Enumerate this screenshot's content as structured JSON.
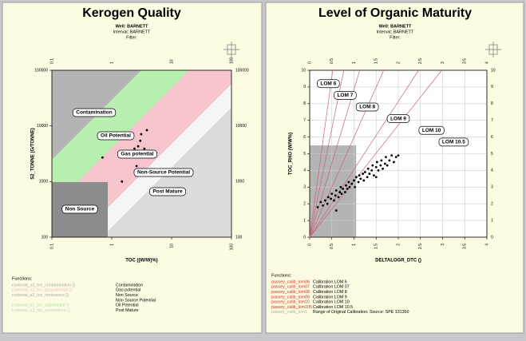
{
  "chart_data": [
    {
      "type": "scatter",
      "title": "Kerogen Quality",
      "subtitle": [
        "Well: BARNETT",
        "Interval: BARNETT",
        "Filter:"
      ],
      "xlabel": "TOC ((W/W)%)",
      "ylabel": "S2_TONNE (G/TONNE)",
      "log_x": true,
      "log_y": true,
      "xlim": [
        0.1,
        100
      ],
      "ylim": [
        100,
        100000
      ],
      "xticks": [
        0.1,
        1,
        10,
        100
      ],
      "yticks": [
        100,
        1000,
        10000,
        100000
      ],
      "x": [
        0.7,
        3.87,
        3.1,
        3.0,
        2.76,
        2.4,
        3.5,
        1.48,
        2.6
      ],
      "values": [
        2700,
        8400,
        7100,
        5400,
        4300,
        3900,
        3900,
        1000,
        1900
      ],
      "color": "#000000",
      "zones": [
        {
          "label": "Contamination",
          "color": "#b4b4b4"
        },
        {
          "label": "Oil Potential",
          "color": "#b8f0b0"
        },
        {
          "label": "Gas potential",
          "color": "#f6c4cc"
        },
        {
          "label": "Non-Source Potential",
          "color": "#f6f6f6"
        },
        {
          "label": "Post Mature",
          "color": "#dcdcdc"
        },
        {
          "label": "Non Source",
          "color": "#8c8c8c"
        }
      ],
      "functions_title": "Functions:",
      "functions": [
        {
          "name": "rockeval_s2_toc_contamination ()",
          "color": "#aaaaaa",
          "description": "Contamination"
        },
        {
          "name": "rockeval_s2_toc_gaspotential ()",
          "color": "#f0b8c0",
          "description": "Gas potential"
        },
        {
          "name": "rockeval_s2_toc_nonsource ()",
          "color": "#aaaaaa",
          "description": "Non Source"
        },
        {
          "description": "Non Source Potential"
        },
        {
          "name": "rockeval_s2_toc_oilpotential ()",
          "color": "#a8e8a0",
          "description": "Oil Potential"
        },
        {
          "name": "rockeval_s2_toc_postmature ()",
          "color": "#cccccc",
          "description": "Post Mature"
        }
      ]
    },
    {
      "type": "scatter",
      "title": "Level of Organic Maturity",
      "subtitle": [
        "Well: BARNETT",
        "Interval: BARNETT",
        "Filter:"
      ],
      "xlabel": "DELTALOGR_DTC ()",
      "ylabel": "TOC_RHO (W/W%)",
      "xlim": [
        0,
        4
      ],
      "ylim": [
        0,
        10
      ],
      "xticks": [
        0,
        0.5,
        1,
        1.5,
        2,
        2.5,
        3,
        3.5,
        4
      ],
      "yticks": [
        0,
        1,
        2,
        3,
        4,
        5,
        6,
        7,
        8,
        9,
        10
      ],
      "grid": true,
      "x": [
        0.18,
        0.25,
        0.3,
        0.35,
        0.4,
        0.42,
        0.48,
        0.5,
        0.55,
        0.58,
        0.6,
        0.65,
        0.68,
        0.7,
        0.72,
        0.75,
        0.8,
        0.82,
        0.85,
        0.88,
        0.9,
        0.95,
        1.0,
        1.02,
        1.05,
        1.1,
        1.12,
        1.15,
        1.2,
        1.22,
        1.25,
        1.3,
        1.32,
        1.35,
        1.4,
        1.42,
        1.45,
        1.5,
        1.52,
        1.55,
        1.6,
        1.62,
        1.65,
        1.7,
        1.72,
        1.75,
        1.8,
        1.85,
        1.9,
        1.95,
        1.5,
        2.0,
        0.6
      ],
      "values": [
        1.8,
        2.1,
        1.9,
        2.2,
        2.0,
        2.4,
        2.3,
        2.6,
        2.2,
        2.5,
        2.8,
        2.4,
        2.7,
        3.0,
        2.6,
        2.9,
        2.7,
        3.1,
        2.9,
        3.3,
        3.0,
        3.2,
        3.4,
        3.0,
        3.6,
        3.3,
        3.7,
        3.5,
        3.8,
        3.4,
        3.9,
        3.6,
        4.1,
        3.8,
        4.0,
        4.3,
        3.7,
        4.2,
        4.5,
        4.0,
        4.3,
        4.6,
        4.1,
        4.4,
        4.8,
        4.3,
        4.6,
        4.9,
        4.5,
        4.8,
        3.6,
        4.9,
        1.6
      ],
      "color": "#000000",
      "calibration_range": {
        "color": "#b4b4b4",
        "xlim": [
          0,
          1.05
        ],
        "ylim": [
          0,
          5.5
        ]
      },
      "series": [
        {
          "name": "LOM 6",
          "color": "#c86478",
          "x": [
            0,
            0.52
          ],
          "values": [
            0,
            10
          ]
        },
        {
          "name": "LOM 7",
          "color": "#c86478",
          "x": [
            0,
            0.77
          ],
          "values": [
            0,
            10
          ]
        },
        {
          "name": "LOM 8",
          "color": "#c86478",
          "x": [
            0,
            1.13
          ],
          "values": [
            0,
            10
          ]
        },
        {
          "name": "LOM 9",
          "color": "#c86478",
          "x": [
            0,
            1.67
          ],
          "values": [
            0,
            10
          ]
        },
        {
          "name": "LOM 10",
          "color": "#c86478",
          "x": [
            0,
            2.46
          ],
          "values": [
            0,
            10
          ]
        },
        {
          "name": "LOM 10.5",
          "color": "#c86478",
          "x": [
            0,
            2.98
          ],
          "values": [
            0,
            10
          ]
        }
      ],
      "functions_title": "Functions:",
      "functions": [
        {
          "name": "passey_calib_lom06",
          "color": "#d03020",
          "description": "Calibration LOM 6"
        },
        {
          "name": "passey_calib_lom07",
          "color": "#d03020",
          "description": "Calibration LOM 07"
        },
        {
          "name": "passey_calib_lom08",
          "color": "#d03020",
          "description": "Calibration LOM 8"
        },
        {
          "name": "passey_calib_lom09",
          "color": "#d03020",
          "description": "Calibration LOM 9"
        },
        {
          "name": "passey_calib_lom10",
          "color": "#d03020",
          "description": "Calibration LOM 10"
        },
        {
          "name": "passey_calib_lom105",
          "color": "#d03020",
          "description": "Calibration LOM 10.5"
        },
        {
          "name": "passey_calib_lom1",
          "color": "#b0b0b0",
          "description": "Range of Original Calibration.  Source: SPE 131350"
        }
      ]
    }
  ]
}
